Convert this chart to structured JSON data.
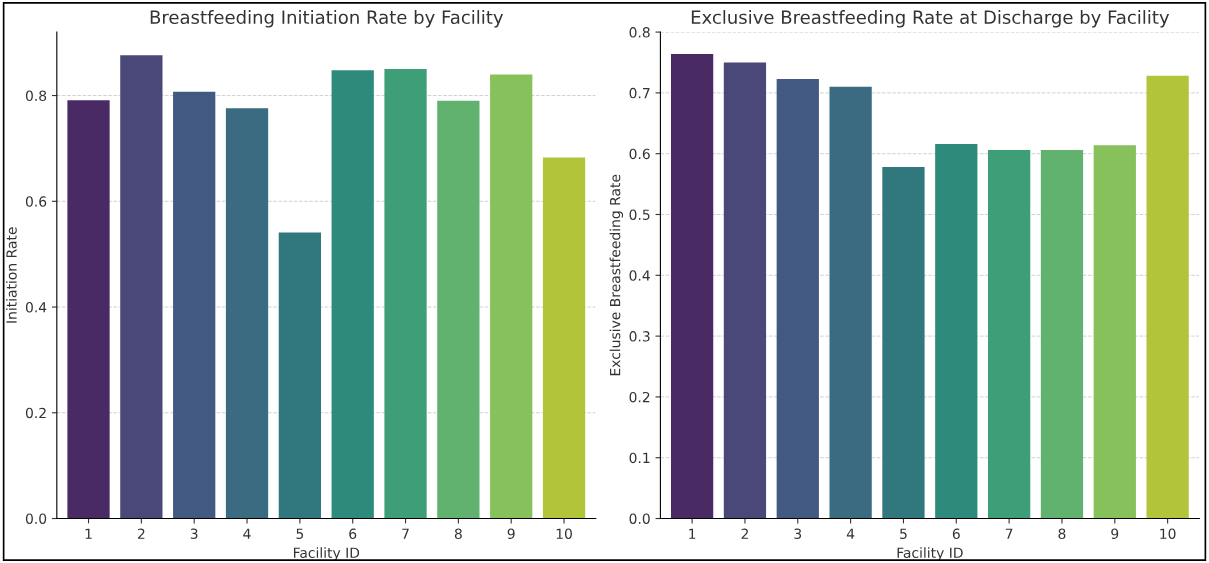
{
  "chart_data": [
    {
      "type": "bar",
      "title": "Breastfeeding Initiation Rate by Facility",
      "xlabel": "Facility ID",
      "ylabel": "Initiation Rate",
      "categories": [
        "1",
        "2",
        "3",
        "4",
        "5",
        "6",
        "7",
        "8",
        "9",
        "10"
      ],
      "values": [
        0.791,
        0.876,
        0.807,
        0.776,
        0.541,
        0.848,
        0.85,
        0.79,
        0.84,
        0.683
      ],
      "colors": [
        "#4a2a64",
        "#4a4779",
        "#425a82",
        "#3a6b80",
        "#30787d",
        "#2e8b7b",
        "#3d9e78",
        "#60b26e",
        "#87c15b",
        "#b1c43a"
      ],
      "ylim": [
        0,
        0.92
      ],
      "yticks": [
        {
          "value": 0,
          "label": "0.0"
        },
        0.2,
        0.4,
        0.6,
        0.8
      ],
      "grid": "y"
    },
    {
      "type": "bar",
      "title": "Exclusive Breastfeeding Rate at Discharge by Facility",
      "xlabel": "Facility ID",
      "ylabel": "Exclusive Breastfeeding Rate",
      "categories": [
        "1",
        "2",
        "3",
        "4",
        "5",
        "6",
        "7",
        "8",
        "9",
        "10"
      ],
      "values": [
        0.764,
        0.75,
        0.723,
        0.71,
        0.578,
        0.616,
        0.606,
        0.606,
        0.614,
        0.728
      ],
      "colors": [
        "#4a2a64",
        "#4a4779",
        "#425a82",
        "#3a6b80",
        "#30787d",
        "#2e8b7b",
        "#3d9e78",
        "#60b26e",
        "#87c15b",
        "#b1c43a"
      ],
      "ylim": [
        0,
        0.8
      ],
      "yticks": [
        {
          "value": 0,
          "label": "0.0"
        },
        0.1,
        0.2,
        0.3,
        0.4,
        0.5,
        0.6,
        0.7,
        0.8
      ],
      "grid": "y"
    }
  ]
}
